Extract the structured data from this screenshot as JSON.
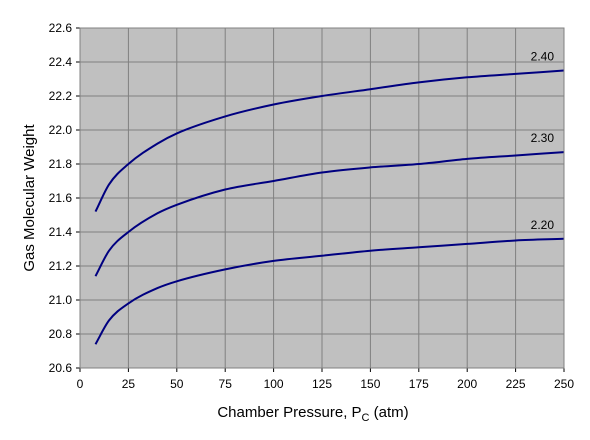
{
  "chart_data": {
    "type": "line",
    "xlabel_main": "Chamber Pressure, P",
    "xlabel_sub": "C",
    "xlabel_unit": " (atm)",
    "ylabel": "Gas Molecular Weight",
    "xlim": [
      0,
      250
    ],
    "ylim": [
      20.6,
      22.6
    ],
    "x_ticks": [
      "0",
      "25",
      "50",
      "75",
      "100",
      "125",
      "150",
      "175",
      "200",
      "225",
      "250"
    ],
    "y_ticks": [
      "20.6",
      "20.8",
      "21.0",
      "21.2",
      "21.4",
      "21.6",
      "21.8",
      "22.0",
      "22.2",
      "22.4",
      "22.6"
    ],
    "grid": true,
    "plot_background": "#c0c0c0",
    "line_color": "#000080",
    "x": [
      8,
      15,
      25,
      40,
      50,
      75,
      100,
      125,
      150,
      175,
      200,
      225,
      250
    ],
    "series": [
      {
        "name": "2.40",
        "values": [
          21.52,
          21.68,
          21.8,
          21.92,
          21.98,
          22.08,
          22.15,
          22.2,
          22.24,
          22.28,
          22.31,
          22.33,
          22.35
        ]
      },
      {
        "name": "2.30",
        "values": [
          21.14,
          21.29,
          21.4,
          21.51,
          21.56,
          21.65,
          21.7,
          21.75,
          21.78,
          21.8,
          21.83,
          21.85,
          21.87
        ]
      },
      {
        "name": "2.20",
        "values": [
          20.74,
          20.88,
          20.98,
          21.07,
          21.11,
          21.18,
          21.23,
          21.26,
          21.29,
          21.31,
          21.33,
          21.35,
          21.36
        ]
      }
    ]
  }
}
